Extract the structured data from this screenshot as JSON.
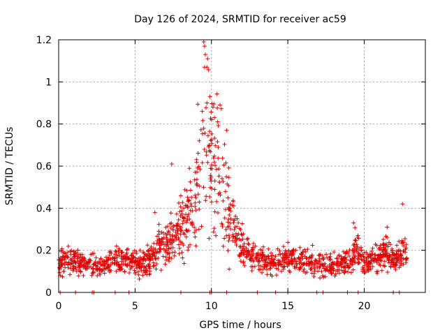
{
  "chart_data": {
    "type": "scatter",
    "title": "Day 126 of 2024, SRMTID for receiver ac59",
    "xlabel": "GPS time / hours",
    "ylabel": "SRMTID / TECUs",
    "xlim": [
      0,
      24
    ],
    "ylim": [
      0,
      1.2
    ],
    "xticks": [
      0,
      5,
      10,
      15,
      20
    ],
    "xtick_labels": [
      "0",
      "5",
      "10",
      "15",
      "20"
    ],
    "yticks": [
      0,
      0.2,
      0.4,
      0.6,
      0.8,
      1.0,
      1.2
    ],
    "ytick_labels": [
      "0",
      "0.2",
      "0.4",
      "0.6",
      "0.8",
      "1",
      "1.2"
    ],
    "grid": true,
    "marker": "+",
    "color": "#e00000",
    "series": [
      {
        "name": "SRMTID",
        "profile_x": [
          0,
          1,
          2,
          3,
          4,
          5,
          5.5,
          6,
          6.5,
          7,
          7.5,
          8,
          8.5,
          9,
          9.5,
          10,
          10.5,
          11,
          11.5,
          12,
          12.5,
          13,
          14,
          15,
          16,
          17,
          18,
          18.5,
          19,
          19.5,
          20,
          20.5,
          21,
          21.5,
          22,
          22.5,
          22.8
        ],
        "profile_y": [
          0.14,
          0.15,
          0.13,
          0.13,
          0.15,
          0.14,
          0.13,
          0.17,
          0.2,
          0.23,
          0.27,
          0.3,
          0.38,
          0.48,
          0.62,
          0.65,
          0.55,
          0.42,
          0.3,
          0.22,
          0.18,
          0.16,
          0.14,
          0.16,
          0.15,
          0.14,
          0.13,
          0.14,
          0.15,
          0.22,
          0.14,
          0.16,
          0.17,
          0.2,
          0.15,
          0.18,
          0.2
        ],
        "n_points_approx": 1500,
        "highlights": [
          {
            "x": 9.5,
            "y": 1.19
          },
          {
            "x": 9.55,
            "y": 1.17
          },
          {
            "x": 9.6,
            "y": 1.13
          },
          {
            "x": 9.55,
            "y": 1.07
          },
          {
            "x": 9.7,
            "y": 1.07
          },
          {
            "x": 9.9,
            "y": 0.93
          },
          {
            "x": 9.7,
            "y": 0.9
          },
          {
            "x": 10.1,
            "y": 0.88
          },
          {
            "x": 9.4,
            "y": 0.86
          },
          {
            "x": 10.2,
            "y": 0.83
          },
          {
            "x": 11.0,
            "y": 0.77
          },
          {
            "x": 7.4,
            "y": 0.61
          },
          {
            "x": 6.3,
            "y": 0.38
          },
          {
            "x": 22.5,
            "y": 0.42
          },
          {
            "x": 19.3,
            "y": 0.33
          },
          {
            "x": 21.5,
            "y": 0.31
          }
        ]
      }
    ],
    "zero_level_x": [
      0.1,
      1.1,
      2.2,
      2.3,
      3.7,
      4.6,
      8.0,
      9.9,
      10.0,
      11.0,
      13.0,
      14.2,
      15.0,
      16.9,
      17.3,
      18.9,
      19.6,
      21.9,
      22.3
    ]
  }
}
